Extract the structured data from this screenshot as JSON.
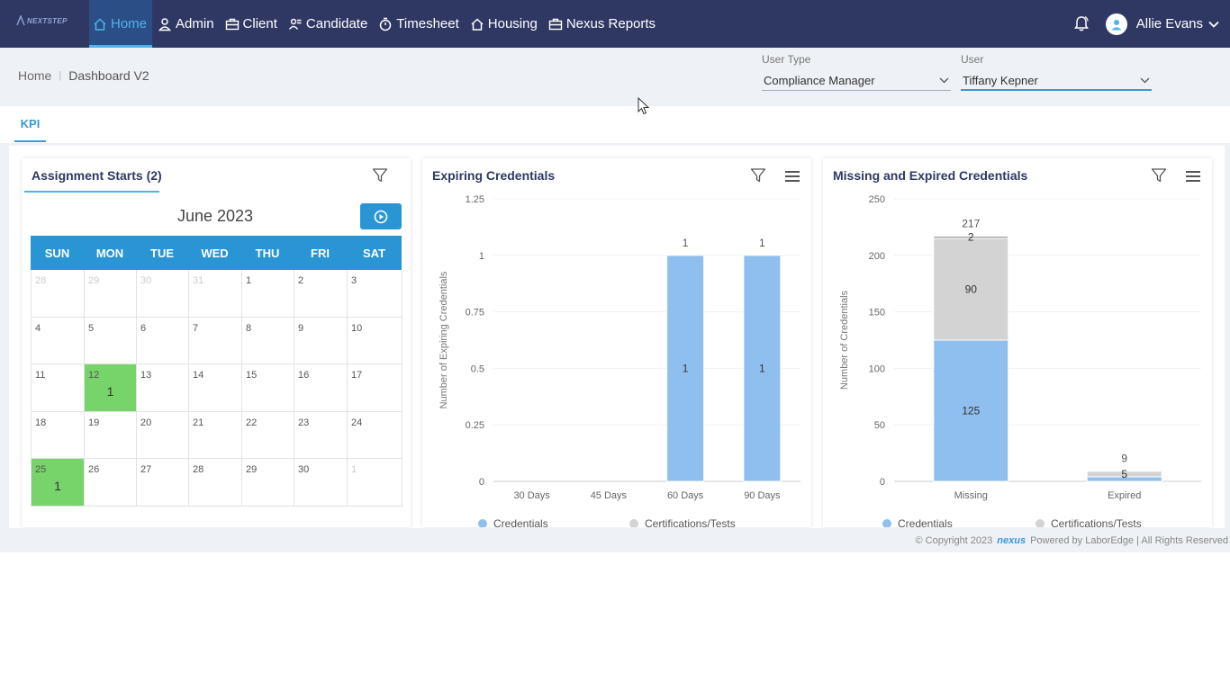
{
  "brand": {
    "logo_text": "NEXTSTEP"
  },
  "nav": {
    "items": [
      {
        "label": "Home",
        "icon": "home-icon",
        "active": true
      },
      {
        "label": "Admin",
        "icon": "user-icon"
      },
      {
        "label": "Client",
        "icon": "briefcase-icon"
      },
      {
        "label": "Candidate",
        "icon": "candidate-icon"
      },
      {
        "label": "Timesheet",
        "icon": "stopwatch-icon"
      },
      {
        "label": "Housing",
        "icon": "house-icon"
      },
      {
        "label": "Nexus Reports",
        "icon": "report-icon"
      }
    ],
    "user_name": "Allie Evans"
  },
  "breadcrumb": {
    "home": "Home",
    "current": "Dashboard V2"
  },
  "filters": {
    "user_type_label": "User Type",
    "user_type_value": "Compliance Manager",
    "user_label": "User",
    "user_value": "Tiffany Kepner"
  },
  "tabs": {
    "kpi": "KPI"
  },
  "assignment_starts": {
    "title": "Assignment Starts (2)",
    "month": "June 2023",
    "weekdays": [
      "SUN",
      "MON",
      "TUE",
      "WED",
      "THU",
      "FRI",
      "SAT"
    ],
    "days": [
      {
        "d": "28",
        "other": true
      },
      {
        "d": "29",
        "other": true
      },
      {
        "d": "30",
        "other": true
      },
      {
        "d": "31",
        "other": true
      },
      {
        "d": "1"
      },
      {
        "d": "2"
      },
      {
        "d": "3"
      },
      {
        "d": "4"
      },
      {
        "d": "5"
      },
      {
        "d": "6"
      },
      {
        "d": "7"
      },
      {
        "d": "8"
      },
      {
        "d": "9"
      },
      {
        "d": "10"
      },
      {
        "d": "11"
      },
      {
        "d": "12",
        "count": "1"
      },
      {
        "d": "13"
      },
      {
        "d": "14"
      },
      {
        "d": "15"
      },
      {
        "d": "16"
      },
      {
        "d": "17"
      },
      {
        "d": "18"
      },
      {
        "d": "19"
      },
      {
        "d": "20"
      },
      {
        "d": "21"
      },
      {
        "d": "22"
      },
      {
        "d": "23"
      },
      {
        "d": "24"
      },
      {
        "d": "25",
        "count": "1"
      },
      {
        "d": "26"
      },
      {
        "d": "27"
      },
      {
        "d": "28"
      },
      {
        "d": "29"
      },
      {
        "d": "30"
      },
      {
        "d": "1",
        "other": true
      }
    ]
  },
  "chart_data": [
    {
      "type": "bar",
      "title": "Expiring Credentials",
      "ylabel": "Number of Expiring Credentials",
      "categories": [
        "30 Days",
        "45 Days",
        "60 Days",
        "90 Days"
      ],
      "yticks": [
        "0",
        "0.25",
        "0.5",
        "0.75",
        "1",
        "1.25"
      ],
      "ylim": [
        0,
        1.25
      ],
      "stacked": true,
      "series": [
        {
          "name": "Credentials",
          "color": "#8fbfee",
          "values": [
            0,
            0,
            1,
            1
          ],
          "labels": [
            "",
            "",
            "1",
            "1"
          ]
        },
        {
          "name": "Certifications/Tests",
          "color": "#d3d3d3",
          "values": [
            0,
            0,
            0,
            0
          ],
          "labels": [
            "",
            "",
            "",
            ""
          ]
        }
      ],
      "totals": [
        "",
        "",
        "1",
        "1"
      ]
    },
    {
      "type": "bar",
      "title": "Missing and Expired Credentials",
      "ylabel": "Number of Credentials",
      "categories": [
        "Missing",
        "Expired"
      ],
      "yticks": [
        "0",
        "50",
        "100",
        "150",
        "200",
        "250"
      ],
      "ylim": [
        0,
        250
      ],
      "stacked": true,
      "series": [
        {
          "name": "Credentials",
          "color": "#8fbfee",
          "values": [
            125,
            4
          ],
          "labels": [
            "125",
            ""
          ]
        },
        {
          "name": "Certifications/Tests",
          "color": "#d3d3d3",
          "values": [
            90,
            5
          ],
          "labels": [
            "90",
            "5"
          ]
        },
        {
          "name": "",
          "color": "#a9a9a9",
          "values": [
            2,
            0
          ],
          "labels": [
            "2",
            ""
          ]
        }
      ],
      "totals": [
        "217",
        "9"
      ]
    }
  ],
  "footer": {
    "copyright": "© Copyright 2023",
    "nexus": "nexus",
    "powered": "Powered by LaborEdge | All Rights Reserved"
  }
}
